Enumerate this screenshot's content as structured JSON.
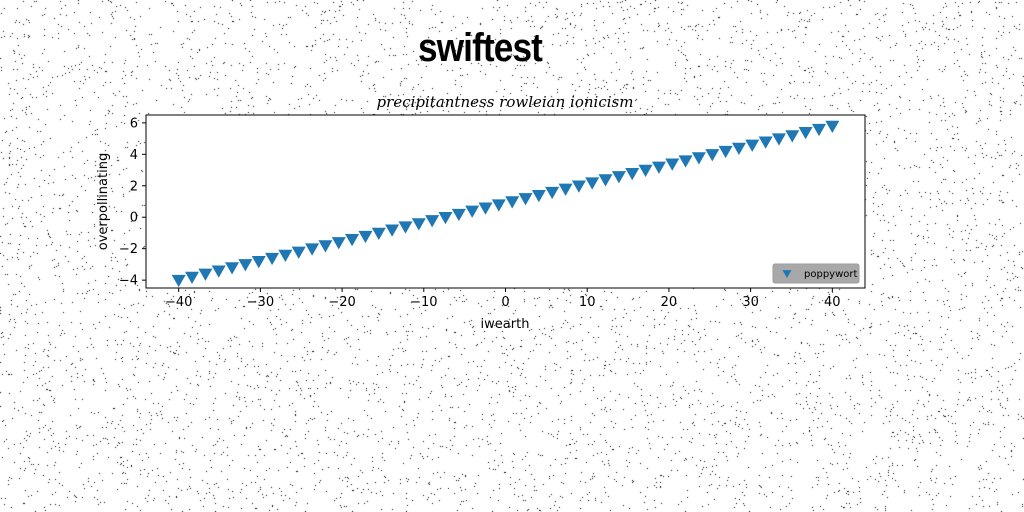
{
  "page": {
    "title": "swiftest"
  },
  "chart_data": {
    "type": "scatter",
    "title": "precipitantness rowleian ionicism",
    "xlabel": "iwearth",
    "ylabel": "overpollinating",
    "xlim": [
      -44,
      44
    ],
    "ylim": [
      -4.5,
      6.5
    ],
    "xticks": [
      -40,
      -30,
      -20,
      -10,
      0,
      10,
      20,
      30,
      40
    ],
    "yticks": [
      -4,
      -2,
      0,
      2,
      4,
      6
    ],
    "grid": false,
    "legend_position": "lower-right",
    "marker": "triangle-down",
    "series": [
      {
        "name": "poppywort",
        "color": "#1f77b4",
        "x": [
          -40,
          -38.37,
          -36.73,
          -35.1,
          -33.47,
          -31.84,
          -30.2,
          -28.57,
          -26.94,
          -25.31,
          -23.67,
          -22.04,
          -20.41,
          -18.78,
          -17.14,
          -15.51,
          -13.88,
          -12.24,
          -10.61,
          -8.98,
          -7.35,
          -5.71,
          -4.08,
          -2.45,
          -0.82,
          0.82,
          2.45,
          4.08,
          5.71,
          7.35,
          8.98,
          10.61,
          12.24,
          13.88,
          15.51,
          17.14,
          18.78,
          20.41,
          22.04,
          23.67,
          25.31,
          26.94,
          28.57,
          30.2,
          31.84,
          33.47,
          35.1,
          36.73,
          38.37,
          40
        ],
        "y": [
          -4,
          -3.8,
          -3.6,
          -3.4,
          -3.2,
          -3.0,
          -2.8,
          -2.6,
          -2.4,
          -2.2,
          -2.0,
          -1.8,
          -1.6,
          -1.4,
          -1.2,
          -1.0,
          -0.8,
          -0.6,
          -0.4,
          -0.2,
          0.0,
          0.2,
          0.4,
          0.6,
          0.8,
          1.0,
          1.2,
          1.4,
          1.6,
          1.8,
          2.0,
          2.2,
          2.4,
          2.6,
          2.8,
          3.0,
          3.2,
          3.4,
          3.6,
          3.8,
          4.0,
          4.2,
          4.4,
          4.6,
          4.8,
          5.0,
          5.2,
          5.4,
          5.6,
          5.8
        ]
      }
    ]
  }
}
